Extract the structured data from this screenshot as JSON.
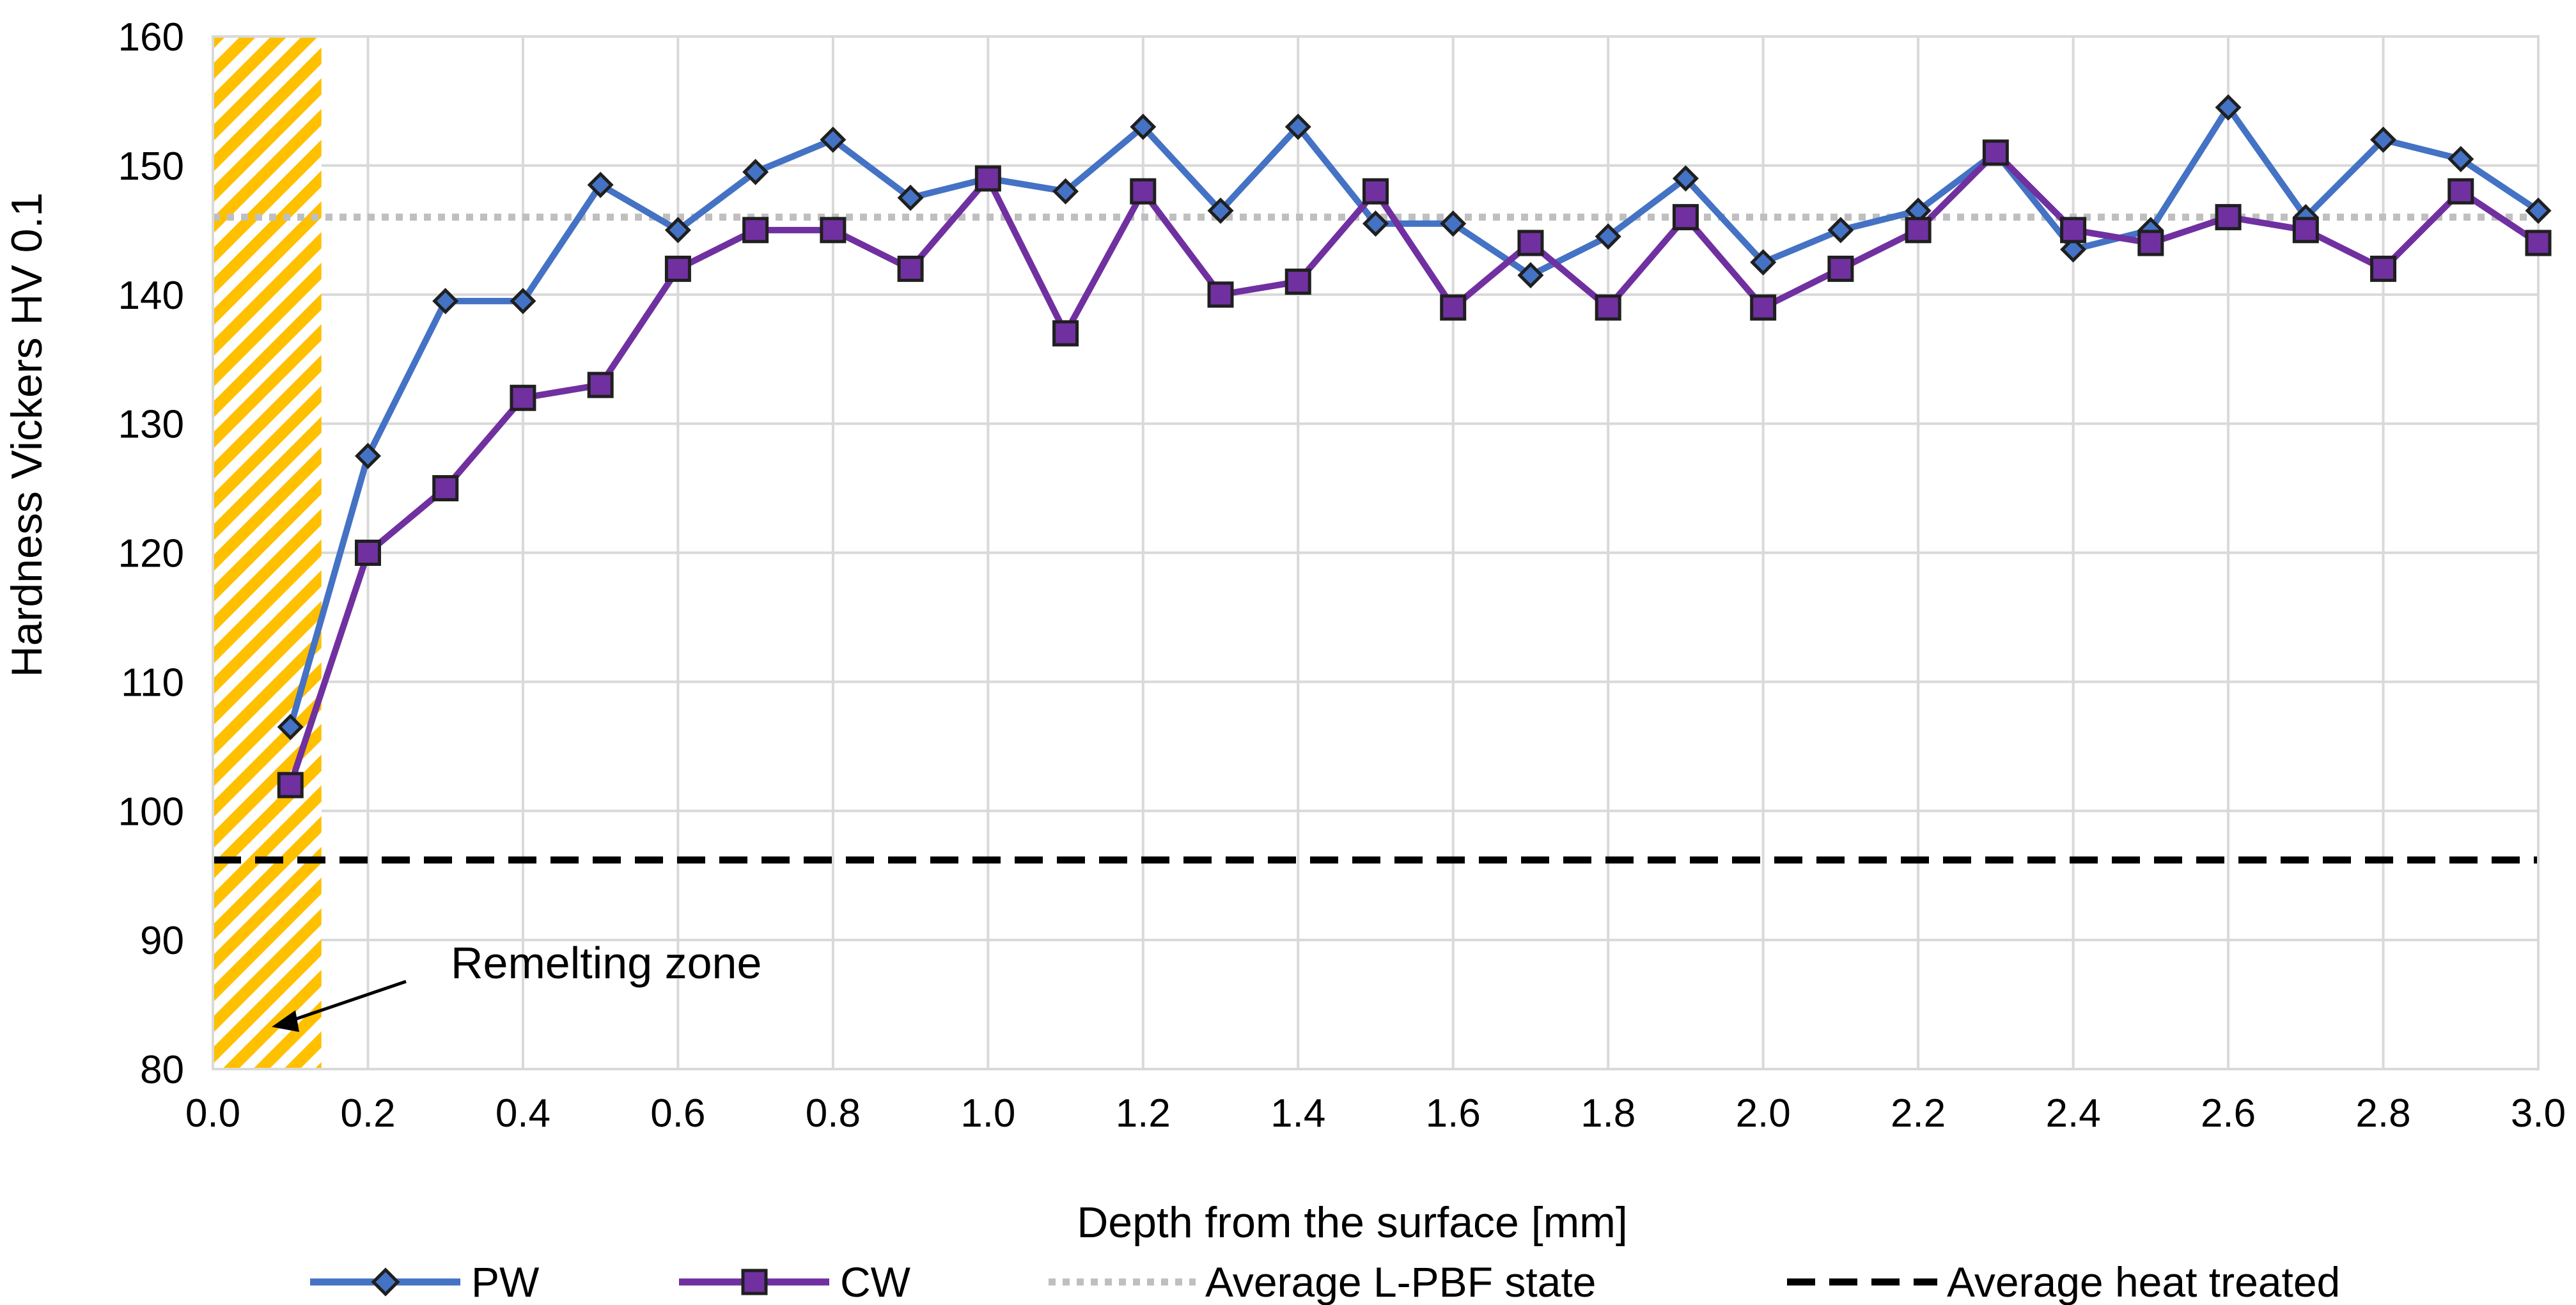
{
  "chart_data": {
    "type": "line",
    "title": "",
    "xlabel": "Depth from the surface [mm]",
    "ylabel": "Hardness Vickers HV 0.1",
    "xlim": [
      0.0,
      3.0
    ],
    "ylim": [
      80,
      160
    ],
    "x_ticks": [
      "0.0",
      "0.2",
      "0.4",
      "0.6",
      "0.8",
      "1.0",
      "1.2",
      "1.4",
      "1.6",
      "1.8",
      "2.0",
      "2.2",
      "2.4",
      "2.6",
      "2.8",
      "3.0"
    ],
    "y_ticks": [
      "80",
      "90",
      "100",
      "110",
      "120",
      "130",
      "140",
      "150",
      "160"
    ],
    "x": [
      0.1,
      0.2,
      0.3,
      0.4,
      0.5,
      0.6,
      0.7,
      0.8,
      0.9,
      1.0,
      1.1,
      1.2,
      1.3,
      1.4,
      1.5,
      1.6,
      1.7,
      1.8,
      1.9,
      2.0,
      2.1,
      2.2,
      2.3,
      2.4,
      2.5,
      2.6,
      2.7,
      2.8,
      2.9,
      3.0
    ],
    "series": [
      {
        "name": "PW",
        "color": "#4472C4",
        "marker": "diamond",
        "values": [
          106.5,
          127.5,
          139.5,
          139.5,
          148.5,
          145,
          149.5,
          152,
          147.5,
          149,
          148,
          153,
          146.5,
          153,
          145.5,
          145.5,
          141.5,
          144.5,
          149,
          142.5,
          145,
          146.5,
          151,
          143.5,
          145,
          154.5,
          146,
          152,
          150.5,
          146.5
        ]
      },
      {
        "name": "CW",
        "color": "#7030A0",
        "marker": "square",
        "values": [
          102,
          120,
          125,
          132,
          133,
          142,
          145,
          145,
          142,
          149,
          137,
          148,
          140,
          141,
          148,
          139,
          144,
          139,
          146,
          139,
          142,
          145,
          151,
          145,
          144,
          146,
          145,
          142,
          148,
          144
        ]
      }
    ],
    "reference_lines": [
      {
        "name": "Average L-PBF state",
        "value": 146,
        "style": "dotted",
        "color": "#BFBFBF"
      },
      {
        "name": "Average heat treated",
        "value": 96.2,
        "style": "dashed",
        "color": "#000000"
      }
    ],
    "shaded_region": {
      "label": "Remelting zone",
      "x_range": [
        0.0,
        0.14
      ],
      "color": "#FFC000",
      "pattern": "diagonal-hatch"
    },
    "legend_position": "bottom",
    "grid": true
  }
}
